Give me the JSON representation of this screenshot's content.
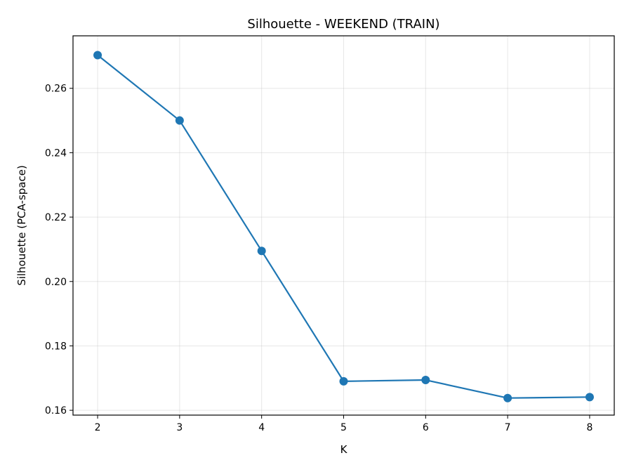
{
  "chart_data": {
    "type": "line",
    "title": "Silhouette - WEEKEND (TRAIN)",
    "xlabel": "K",
    "ylabel": "Silhouette (PCA-space)",
    "x": [
      2,
      3,
      4,
      5,
      6,
      7,
      8
    ],
    "series": [
      {
        "values": [
          0.2703,
          0.25,
          0.2095,
          0.169,
          0.1694,
          0.1638,
          0.1641
        ],
        "color": "#1f77b4",
        "marker": "circle"
      }
    ],
    "xlim": [
      1.7,
      8.3
    ],
    "ylim": [
      0.1585,
      0.2763
    ],
    "xticks": [
      "2",
      "3",
      "4",
      "5",
      "6",
      "7",
      "8"
    ],
    "yticks": [
      "0.16",
      "0.18",
      "0.20",
      "0.22",
      "0.24",
      "0.26"
    ],
    "grid": true,
    "legend": "none"
  }
}
